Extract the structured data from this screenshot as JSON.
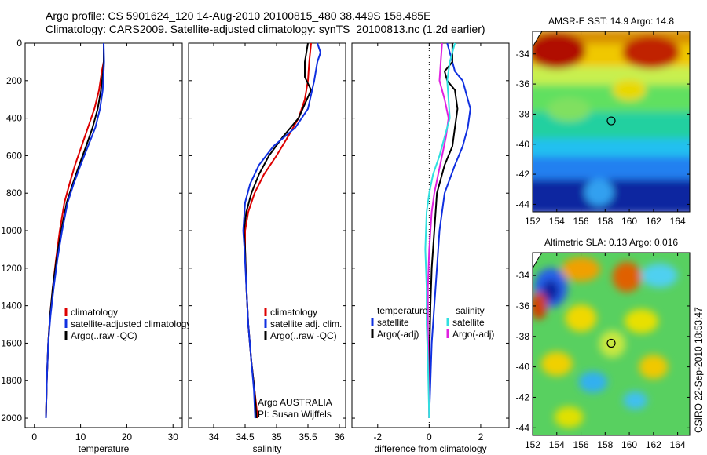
{
  "header": {
    "line1": "Argo profile: CS 5901624_120 14-Aug-2010 20100815_480 38.449S 158.485E",
    "line2": "Climatology: CARS2009. Satellite-adjusted climatology: synTS_20100813.nc (1.2d earlier)"
  },
  "footer_credit": "CSIRO 22-Sep-2010 18:53:47",
  "colors": {
    "red": "#dd0000",
    "blue": "#1030e0",
    "black": "#000000",
    "cyan": "#30e0e0",
    "magenta": "#e020e0"
  },
  "chart_data": [
    {
      "id": "temperature",
      "type": "line",
      "xlabel": "temperature",
      "xlim": [
        -2,
        32
      ],
      "ylim": [
        2050,
        0
      ],
      "xticks": [
        0,
        10,
        20,
        30
      ],
      "yticks": [
        0,
        200,
        400,
        600,
        800,
        1000,
        1200,
        1400,
        1600,
        1800,
        2000
      ],
      "legend": {
        "placement": "lower-middle",
        "entries": [
          {
            "label": "climatology",
            "color": "red"
          },
          {
            "label": "satellite-adjusted climatology",
            "color": "blue"
          },
          {
            "label": "Argo(..raw -QC)",
            "color": "black"
          }
        ]
      },
      "series": [
        {
          "color": "red",
          "x": [
            15.0,
            15.0,
            14.6,
            14.0,
            13.0,
            11.6,
            10.2,
            8.8,
            7.6,
            6.5,
            5.5,
            4.7,
            4.0,
            3.4,
            3.0,
            2.7,
            2.5
          ],
          "y": [
            0,
            100,
            150,
            250,
            350,
            450,
            550,
            650,
            750,
            850,
            1000,
            1150,
            1300,
            1450,
            1600,
            1800,
            2000
          ]
        },
        {
          "color": "black",
          "x": [
            15.0,
            15.0,
            14.9,
            14.4,
            13.7,
            12.6,
            11.2,
            9.7,
            8.3,
            7.0,
            5.8,
            4.8,
            4.0,
            3.4,
            3.0,
            2.7,
            2.5
          ],
          "y": [
            0,
            100,
            150,
            250,
            350,
            450,
            550,
            650,
            750,
            850,
            1000,
            1150,
            1300,
            1450,
            1600,
            1800,
            2000
          ]
        },
        {
          "color": "blue",
          "x": [
            15.0,
            15.1,
            15.0,
            14.8,
            14.2,
            13.2,
            11.6,
            10.0,
            8.5,
            7.2,
            6.0,
            5.0,
            4.2,
            3.5,
            3.0,
            2.7,
            2.5
          ],
          "y": [
            0,
            100,
            150,
            250,
            350,
            450,
            550,
            650,
            750,
            850,
            1000,
            1150,
            1300,
            1450,
            1600,
            1800,
            2000
          ]
        }
      ]
    },
    {
      "id": "salinity",
      "type": "line",
      "xlabel": "salinity",
      "xlim": [
        33.6,
        36.1
      ],
      "ylim": [
        2050,
        0
      ],
      "xticks": [
        34,
        34.5,
        35,
        35.5,
        36
      ],
      "yticks": [
        0,
        200,
        400,
        600,
        800,
        1000,
        1200,
        1400,
        1600,
        1800,
        2000
      ],
      "annotation": [
        "Argo AUSTRALIA",
        "PI: Susan Wijffels"
      ],
      "legend": {
        "placement": "lower-right",
        "entries": [
          {
            "label": "climatology",
            "color": "red"
          },
          {
            "label": "satellite adj. clim.",
            "color": "blue"
          },
          {
            "label": "Argo(..raw -QC)",
            "color": "black"
          }
        ]
      },
      "series": [
        {
          "color": "red",
          "x": [
            35.55,
            35.52,
            35.5,
            35.45,
            35.35,
            35.18,
            35.0,
            34.8,
            34.65,
            34.55,
            34.5,
            34.5,
            34.52,
            34.55,
            34.6,
            34.65,
            34.7
          ],
          "y": [
            0,
            100,
            200,
            300,
            400,
            500,
            600,
            700,
            800,
            900,
            1000,
            1100,
            1300,
            1500,
            1700,
            1850,
            2000
          ]
        },
        {
          "color": "black",
          "x": [
            35.5,
            35.45,
            35.45,
            35.55,
            35.35,
            35.1,
            34.88,
            34.72,
            34.6,
            34.52,
            34.48,
            34.5,
            34.52,
            34.55,
            34.6,
            34.65,
            34.68
          ],
          "y": [
            0,
            100,
            180,
            250,
            400,
            500,
            600,
            700,
            800,
            900,
            1000,
            1100,
            1300,
            1500,
            1700,
            1850,
            2000
          ]
        },
        {
          "color": "blue",
          "x": [
            35.65,
            35.7,
            35.65,
            35.6,
            35.5,
            35.3,
            34.95,
            34.72,
            34.58,
            34.5,
            34.47,
            34.49,
            34.52,
            34.55,
            34.6,
            34.64,
            34.66
          ],
          "y": [
            0,
            50,
            100,
            200,
            350,
            450,
            550,
            650,
            750,
            850,
            1000,
            1100,
            1300,
            1500,
            1700,
            1850,
            2000
          ]
        }
      ]
    },
    {
      "id": "difference",
      "type": "line",
      "xlabel": "difference from climatology",
      "xlim": [
        -3,
        3.1
      ],
      "ylim": [
        2050,
        0
      ],
      "xticks": [
        -2,
        0,
        2
      ],
      "yticks": [
        0,
        200,
        400,
        600,
        800,
        1000,
        1200,
        1400,
        1600,
        1800,
        2000
      ],
      "legend": {
        "placement": "lower-middle",
        "left_header": "temperature",
        "right_header": "salinity",
        "left_entries": [
          {
            "label": "satellite",
            "color": "blue"
          },
          {
            "label": "Argo(-adj)",
            "color": "black"
          }
        ],
        "right_entries": [
          {
            "label": "satellite",
            "color": "cyan"
          },
          {
            "label": "Argo(-adj)",
            "color": "magenta"
          }
        ]
      },
      "series": [
        {
          "color": "blue",
          "x": [
            0.7,
            0.9,
            1.0,
            1.3,
            1.4,
            1.6,
            1.5,
            1.3,
            1.0,
            0.6,
            0.4,
            0.3,
            0.2,
            0.1,
            0.05,
            0.0
          ],
          "y": [
            0,
            100,
            150,
            200,
            250,
            350,
            450,
            550,
            650,
            800,
            1000,
            1200,
            1400,
            1600,
            1800,
            2000
          ]
        },
        {
          "color": "black",
          "x": [
            0.9,
            0.9,
            0.6,
            0.7,
            1.0,
            1.1,
            1.0,
            0.9,
            0.6,
            0.3,
            0.2,
            0.1,
            0.05,
            0.02,
            0.0,
            0.0
          ],
          "y": [
            0,
            100,
            150,
            200,
            250,
            350,
            450,
            550,
            650,
            800,
            1000,
            1200,
            1400,
            1600,
            1800,
            2000
          ]
        },
        {
          "color": "magenta",
          "x": [
            0.5,
            0.45,
            0.4,
            0.6,
            0.75,
            0.65,
            0.5,
            0.35,
            0.2,
            0.1,
            0.0,
            -0.05,
            -0.05,
            -0.03,
            0.0
          ],
          "y": [
            0,
            100,
            200,
            300,
            400,
            500,
            600,
            700,
            800,
            900,
            1100,
            1300,
            1500,
            1700,
            2000
          ]
        },
        {
          "color": "cyan",
          "x": [
            1.0,
            0.8,
            0.7,
            0.75,
            0.8,
            0.6,
            0.4,
            0.15,
            0.0,
            -0.1,
            -0.15,
            -0.1,
            -0.1,
            -0.05,
            0.0
          ],
          "y": [
            0,
            100,
            200,
            300,
            400,
            500,
            600,
            700,
            800,
            900,
            1100,
            1300,
            1500,
            1700,
            2000
          ]
        }
      ]
    },
    {
      "id": "sst_map",
      "type": "heatmap",
      "title": "AMSR-E SST: 14.9 Argo: 14.8",
      "xlim": [
        152,
        165
      ],
      "ylim": [
        -44.5,
        -32.5
      ],
      "xticks": [
        152,
        154,
        156,
        158,
        160,
        162,
        164
      ],
      "yticks": [
        -34,
        -36,
        -38,
        -40,
        -42,
        -44
      ],
      "marker": {
        "lon": 158.5,
        "lat": -38.45
      },
      "bands": [
        {
          "lat": [
            -32.5,
            -33.5
          ],
          "color": "#d89000"
        },
        {
          "lat": [
            -33.5,
            -35.0
          ],
          "color": "#f0c800"
        },
        {
          "lat": [
            -35.0,
            -36.2
          ],
          "color": "#c8f050"
        },
        {
          "lat": [
            -36.2,
            -38.0
          ],
          "color": "#60e060"
        },
        {
          "lat": [
            -38.0,
            -39.8
          ],
          "color": "#20d0a0"
        },
        {
          "lat": [
            -39.8,
            -41.0
          ],
          "color": "#20c0f0"
        },
        {
          "lat": [
            -41.0,
            -42.5
          ],
          "color": "#2080f0"
        },
        {
          "lat": [
            -42.5,
            -44.5
          ],
          "color": "#0828a0"
        }
      ],
      "blobs": [
        {
          "lon": 154.0,
          "lat": -33.8,
          "rlon": 2.4,
          "rlat": 1.2,
          "color": "#b01000"
        },
        {
          "lon": 161.8,
          "lat": -33.9,
          "rlon": 2.4,
          "rlat": 1.1,
          "color": "#c02000"
        },
        {
          "lon": 160.0,
          "lat": -36.4,
          "rlon": 1.4,
          "rlat": 0.7,
          "color": "#e8d800"
        },
        {
          "lon": 155.0,
          "lat": -37.7,
          "rlon": 1.8,
          "rlat": 0.8,
          "color": "#80e060"
        },
        {
          "lon": 157.5,
          "lat": -43.2,
          "rlon": 1.2,
          "rlat": 0.9,
          "color": "#30a0f0"
        }
      ]
    },
    {
      "id": "sla_map",
      "type": "heatmap",
      "title": "Altimetric SLA: 0.13 Argo: 0.016",
      "xlim": [
        152,
        165
      ],
      "ylim": [
        -44.5,
        -32.5
      ],
      "xticks": [
        152,
        154,
        156,
        158,
        160,
        162,
        164
      ],
      "yticks": [
        -34,
        -36,
        -38,
        -40,
        -42,
        -44
      ],
      "marker": {
        "lon": 158.5,
        "lat": -38.45
      },
      "background": "#58d060",
      "blobs": [
        {
          "lon": 153.5,
          "lat": -34.8,
          "rlon": 1.4,
          "rlat": 1.3,
          "color": "#2860e8"
        },
        {
          "lon": 153.5,
          "lat": -35.0,
          "rlon": 0.7,
          "rlat": 0.7,
          "color": "#0820a0"
        },
        {
          "lon": 152.5,
          "lat": -36.0,
          "rlon": 0.7,
          "rlat": 0.9,
          "color": "#d04000"
        },
        {
          "lon": 156.0,
          "lat": -33.6,
          "rlon": 1.6,
          "rlat": 0.8,
          "color": "#f0a000"
        },
        {
          "lon": 159.8,
          "lat": -34.1,
          "rlon": 1.2,
          "rlat": 1.0,
          "color": "#e06000"
        },
        {
          "lon": 162.5,
          "lat": -34.0,
          "rlon": 1.5,
          "rlat": 0.8,
          "color": "#50d0f0"
        },
        {
          "lon": 156.0,
          "lat": -36.8,
          "rlon": 1.3,
          "rlat": 0.9,
          "color": "#f0d800"
        },
        {
          "lon": 161.0,
          "lat": -37.0,
          "rlon": 1.4,
          "rlat": 0.8,
          "color": "#e8e000"
        },
        {
          "lon": 158.6,
          "lat": -38.5,
          "rlon": 1.1,
          "rlat": 0.9,
          "color": "#c8e840"
        },
        {
          "lon": 154.0,
          "lat": -39.8,
          "rlon": 1.3,
          "rlat": 0.8,
          "color": "#f0d000"
        },
        {
          "lon": 162.0,
          "lat": -40.0,
          "rlon": 1.2,
          "rlat": 0.8,
          "color": "#f0c800"
        },
        {
          "lon": 157.0,
          "lat": -41.0,
          "rlon": 1.2,
          "rlat": 0.7,
          "color": "#30b0f0"
        },
        {
          "lon": 160.5,
          "lat": -42.2,
          "rlon": 1.0,
          "rlat": 0.6,
          "color": "#40c0f0"
        },
        {
          "lon": 155.0,
          "lat": -43.3,
          "rlon": 1.2,
          "rlat": 0.7,
          "color": "#e0e000"
        }
      ]
    }
  ]
}
